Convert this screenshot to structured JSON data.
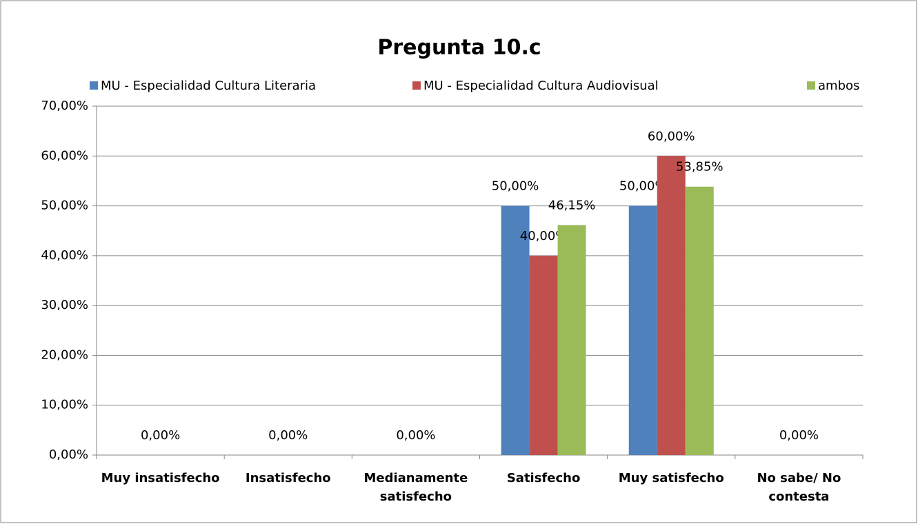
{
  "chart_data": {
    "type": "bar",
    "title": "Pregunta 10.c",
    "categories": [
      "Muy insatisfecho",
      "Insatisfecho",
      "Medianamente satisfecho",
      "Satisfecho",
      "Muy satisfecho",
      "No sabe/ No contesta"
    ],
    "series": [
      {
        "name": "MU - Especialidad Cultura Literaria",
        "color": "#4f81bd",
        "values": [
          null,
          null,
          null,
          50,
          50,
          null
        ],
        "value_labels": [
          null,
          null,
          null,
          "50,00%",
          "50,00%",
          null
        ]
      },
      {
        "name": "MU - Especialidad Cultura Audiovisual",
        "color": "#c0504d",
        "values": [
          0,
          0,
          0,
          40,
          60,
          0
        ],
        "value_labels": [
          "0,00%",
          "0,00%",
          "0,00%",
          "40,00%",
          "60,00%",
          "0,00%"
        ]
      },
      {
        "name": "ambos",
        "color": "#9bbb59",
        "values": [
          null,
          null,
          null,
          46.15,
          53.85,
          null
        ],
        "value_labels": [
          null,
          null,
          null,
          "46,15%",
          "53,85%",
          null
        ]
      }
    ],
    "ylim": [
      0,
      70
    ],
    "yticks": [
      {
        "value": 0,
        "label": "0,00%"
      },
      {
        "value": 10,
        "label": "10,00%"
      },
      {
        "value": 20,
        "label": "20,00%"
      },
      {
        "value": 30,
        "label": "30,00%"
      },
      {
        "value": 40,
        "label": "40,00%"
      },
      {
        "value": 50,
        "label": "50,00%"
      },
      {
        "value": 60,
        "label": "60,00%"
      },
      {
        "value": 70,
        "label": "70,00%"
      }
    ],
    "grid": true,
    "legend": "top"
  }
}
